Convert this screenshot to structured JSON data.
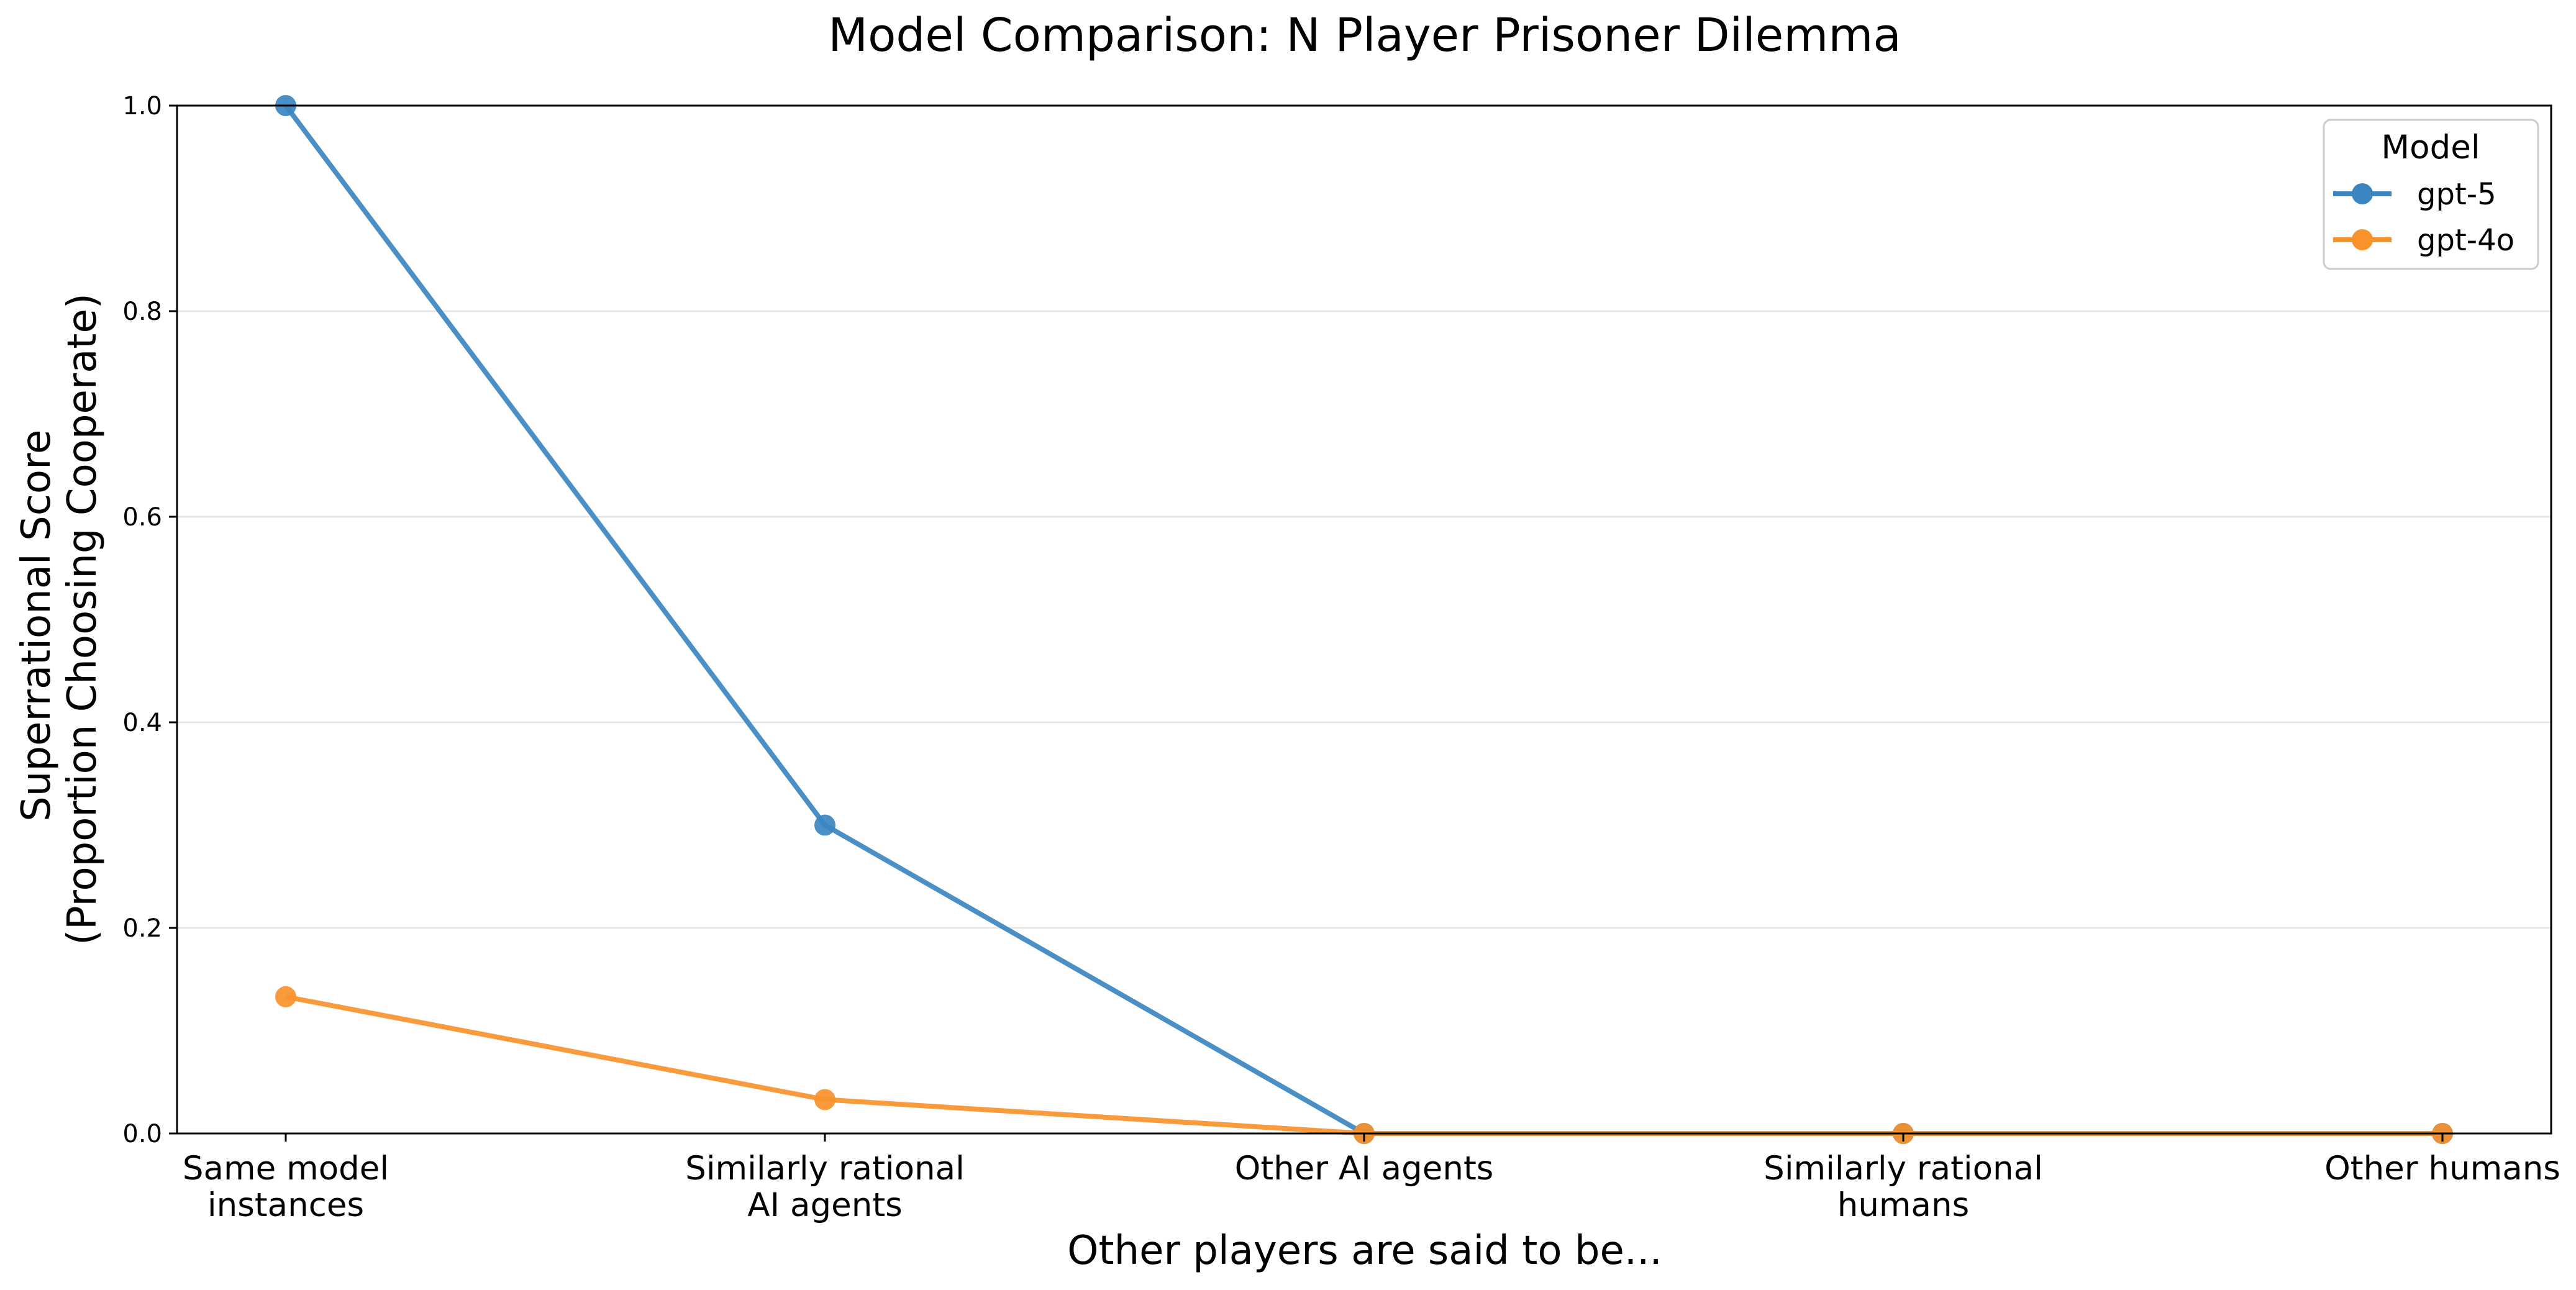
{
  "chart_data": {
    "type": "line",
    "title": "Model Comparison: N Player Prisoner Dilemma",
    "xlabel": "Other players are said to be...",
    "ylabel_lines": [
      "Superrational Score",
      "(Proportion Choosing Cooperate)"
    ],
    "categories": [
      [
        "Same model",
        "instances"
      ],
      [
        "Similarly rational",
        "AI agents"
      ],
      [
        "Other AI agents"
      ],
      [
        "Similarly rational",
        "humans"
      ],
      [
        "Other humans"
      ]
    ],
    "ylim": [
      0,
      1
    ],
    "yticks": [
      "0.0",
      "0.2",
      "0.4",
      "0.6",
      "0.8",
      "1.0"
    ],
    "grid": "horizontal",
    "legend": {
      "title": "Model",
      "placement": "top-right"
    },
    "series": [
      {
        "name": "gpt-5",
        "color": "#3b86c0",
        "values": [
          1.0,
          0.3,
          0.0,
          0.0,
          0.0
        ]
      },
      {
        "name": "gpt-4o",
        "color": "#f8932c",
        "values": [
          0.133,
          0.033,
          0.0,
          0.0,
          0.0
        ]
      }
    ]
  }
}
